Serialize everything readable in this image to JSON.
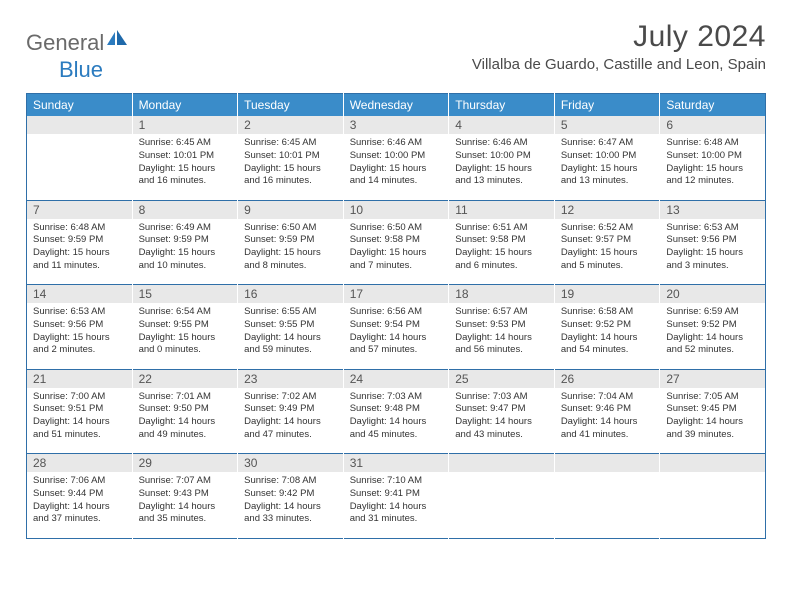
{
  "brand": {
    "part1": "General",
    "part2": "Blue"
  },
  "month_title": "July 2024",
  "location": "Villalba de Guardo, Castille and Leon, Spain",
  "colors": {
    "header_bg": "#3a8cc9",
    "header_text": "#ffffff",
    "datebar_bg": "#e8e8e8",
    "border": "#2f6fa8",
    "logo_blue": "#2b7bbf",
    "logo_gray": "#6a6a6a",
    "text": "#333333"
  },
  "day_headers": [
    "Sunday",
    "Monday",
    "Tuesday",
    "Wednesday",
    "Thursday",
    "Friday",
    "Saturday"
  ],
  "weeks": [
    {
      "nums": [
        "",
        "1",
        "2",
        "3",
        "4",
        "5",
        "6"
      ],
      "cells": [
        {},
        {
          "sr": "Sunrise: 6:45 AM",
          "ss": "Sunset: 10:01 PM",
          "d1": "Daylight: 15 hours",
          "d2": "and 16 minutes."
        },
        {
          "sr": "Sunrise: 6:45 AM",
          "ss": "Sunset: 10:01 PM",
          "d1": "Daylight: 15 hours",
          "d2": "and 16 minutes."
        },
        {
          "sr": "Sunrise: 6:46 AM",
          "ss": "Sunset: 10:00 PM",
          "d1": "Daylight: 15 hours",
          "d2": "and 14 minutes."
        },
        {
          "sr": "Sunrise: 6:46 AM",
          "ss": "Sunset: 10:00 PM",
          "d1": "Daylight: 15 hours",
          "d2": "and 13 minutes."
        },
        {
          "sr": "Sunrise: 6:47 AM",
          "ss": "Sunset: 10:00 PM",
          "d1": "Daylight: 15 hours",
          "d2": "and 13 minutes."
        },
        {
          "sr": "Sunrise: 6:48 AM",
          "ss": "Sunset: 10:00 PM",
          "d1": "Daylight: 15 hours",
          "d2": "and 12 minutes."
        }
      ]
    },
    {
      "nums": [
        "7",
        "8",
        "9",
        "10",
        "11",
        "12",
        "13"
      ],
      "cells": [
        {
          "sr": "Sunrise: 6:48 AM",
          "ss": "Sunset: 9:59 PM",
          "d1": "Daylight: 15 hours",
          "d2": "and 11 minutes."
        },
        {
          "sr": "Sunrise: 6:49 AM",
          "ss": "Sunset: 9:59 PM",
          "d1": "Daylight: 15 hours",
          "d2": "and 10 minutes."
        },
        {
          "sr": "Sunrise: 6:50 AM",
          "ss": "Sunset: 9:59 PM",
          "d1": "Daylight: 15 hours",
          "d2": "and 8 minutes."
        },
        {
          "sr": "Sunrise: 6:50 AM",
          "ss": "Sunset: 9:58 PM",
          "d1": "Daylight: 15 hours",
          "d2": "and 7 minutes."
        },
        {
          "sr": "Sunrise: 6:51 AM",
          "ss": "Sunset: 9:58 PM",
          "d1": "Daylight: 15 hours",
          "d2": "and 6 minutes."
        },
        {
          "sr": "Sunrise: 6:52 AM",
          "ss": "Sunset: 9:57 PM",
          "d1": "Daylight: 15 hours",
          "d2": "and 5 minutes."
        },
        {
          "sr": "Sunrise: 6:53 AM",
          "ss": "Sunset: 9:56 PM",
          "d1": "Daylight: 15 hours",
          "d2": "and 3 minutes."
        }
      ]
    },
    {
      "nums": [
        "14",
        "15",
        "16",
        "17",
        "18",
        "19",
        "20"
      ],
      "cells": [
        {
          "sr": "Sunrise: 6:53 AM",
          "ss": "Sunset: 9:56 PM",
          "d1": "Daylight: 15 hours",
          "d2": "and 2 minutes."
        },
        {
          "sr": "Sunrise: 6:54 AM",
          "ss": "Sunset: 9:55 PM",
          "d1": "Daylight: 15 hours",
          "d2": "and 0 minutes."
        },
        {
          "sr": "Sunrise: 6:55 AM",
          "ss": "Sunset: 9:55 PM",
          "d1": "Daylight: 14 hours",
          "d2": "and 59 minutes."
        },
        {
          "sr": "Sunrise: 6:56 AM",
          "ss": "Sunset: 9:54 PM",
          "d1": "Daylight: 14 hours",
          "d2": "and 57 minutes."
        },
        {
          "sr": "Sunrise: 6:57 AM",
          "ss": "Sunset: 9:53 PM",
          "d1": "Daylight: 14 hours",
          "d2": "and 56 minutes."
        },
        {
          "sr": "Sunrise: 6:58 AM",
          "ss": "Sunset: 9:52 PM",
          "d1": "Daylight: 14 hours",
          "d2": "and 54 minutes."
        },
        {
          "sr": "Sunrise: 6:59 AM",
          "ss": "Sunset: 9:52 PM",
          "d1": "Daylight: 14 hours",
          "d2": "and 52 minutes."
        }
      ]
    },
    {
      "nums": [
        "21",
        "22",
        "23",
        "24",
        "25",
        "26",
        "27"
      ],
      "cells": [
        {
          "sr": "Sunrise: 7:00 AM",
          "ss": "Sunset: 9:51 PM",
          "d1": "Daylight: 14 hours",
          "d2": "and 51 minutes."
        },
        {
          "sr": "Sunrise: 7:01 AM",
          "ss": "Sunset: 9:50 PM",
          "d1": "Daylight: 14 hours",
          "d2": "and 49 minutes."
        },
        {
          "sr": "Sunrise: 7:02 AM",
          "ss": "Sunset: 9:49 PM",
          "d1": "Daylight: 14 hours",
          "d2": "and 47 minutes."
        },
        {
          "sr": "Sunrise: 7:03 AM",
          "ss": "Sunset: 9:48 PM",
          "d1": "Daylight: 14 hours",
          "d2": "and 45 minutes."
        },
        {
          "sr": "Sunrise: 7:03 AM",
          "ss": "Sunset: 9:47 PM",
          "d1": "Daylight: 14 hours",
          "d2": "and 43 minutes."
        },
        {
          "sr": "Sunrise: 7:04 AM",
          "ss": "Sunset: 9:46 PM",
          "d1": "Daylight: 14 hours",
          "d2": "and 41 minutes."
        },
        {
          "sr": "Sunrise: 7:05 AM",
          "ss": "Sunset: 9:45 PM",
          "d1": "Daylight: 14 hours",
          "d2": "and 39 minutes."
        }
      ]
    },
    {
      "nums": [
        "28",
        "29",
        "30",
        "31",
        "",
        "",
        ""
      ],
      "cells": [
        {
          "sr": "Sunrise: 7:06 AM",
          "ss": "Sunset: 9:44 PM",
          "d1": "Daylight: 14 hours",
          "d2": "and 37 minutes."
        },
        {
          "sr": "Sunrise: 7:07 AM",
          "ss": "Sunset: 9:43 PM",
          "d1": "Daylight: 14 hours",
          "d2": "and 35 minutes."
        },
        {
          "sr": "Sunrise: 7:08 AM",
          "ss": "Sunset: 9:42 PM",
          "d1": "Daylight: 14 hours",
          "d2": "and 33 minutes."
        },
        {
          "sr": "Sunrise: 7:10 AM",
          "ss": "Sunset: 9:41 PM",
          "d1": "Daylight: 14 hours",
          "d2": "and 31 minutes."
        },
        {},
        {},
        {}
      ]
    }
  ]
}
